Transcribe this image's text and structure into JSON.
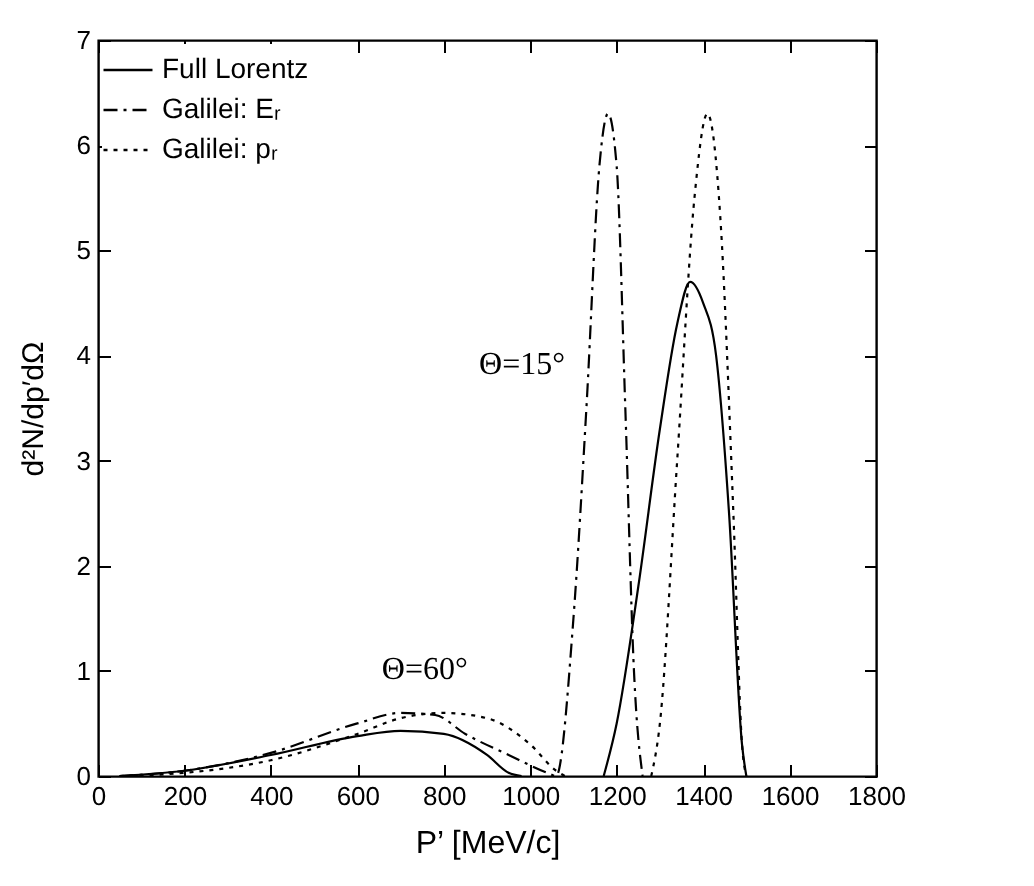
{
  "chart_data": {
    "type": "line",
    "xlabel": "P’ [MeV/c]",
    "ylabel": "d²N/dp′dΩ",
    "xlim": [
      0,
      1800
    ],
    "xticks": [
      0,
      200,
      400,
      600,
      800,
      1000,
      1200,
      1400,
      1600,
      1800
    ],
    "ylim": [
      0,
      7
    ],
    "yticks": [
      0,
      1,
      2,
      3,
      4,
      5,
      6,
      7
    ],
    "grid": false,
    "legend": "top left",
    "annotations": [
      "Θ=15°",
      "Θ=60°"
    ],
    "series": [
      {
        "name": "Full Lorentz",
        "color": "#000000",
        "line_style": "solid",
        "x": [
          50,
          200,
          400,
          600,
          700,
          800,
          900,
          950,
          980,
          null,
          1170,
          1200,
          1250,
          1300,
          1340,
          1370,
          1400,
          1430,
          1460,
          1490,
          1500
        ],
        "values": [
          0,
          0.05,
          0.2,
          0.38,
          0.43,
          0.4,
          0.2,
          0.03,
          0,
          null,
          0,
          0.5,
          1.8,
          3.3,
          4.3,
          4.7,
          4.5,
          4.0,
          2.5,
          0.3,
          0
        ]
      },
      {
        "name": "Galilei: Eᵣ",
        "color": "#000000",
        "line_style": "dashdot",
        "x": [
          50,
          200,
          400,
          600,
          700,
          780,
          850,
          950,
          1040,
          1060,
          1100,
          1130,
          1160,
          1180,
          1200,
          1220,
          1240,
          1260
        ],
        "values": [
          0,
          0.05,
          0.22,
          0.5,
          0.6,
          0.58,
          0.4,
          0.2,
          0.03,
          0,
          1.5,
          3.5,
          5.8,
          6.3,
          5.8,
          3.5,
          1.0,
          0
        ]
      },
      {
        "name": "Galilei: pᵣ",
        "color": "#000000",
        "line_style": "dotted",
        "x": [
          50,
          200,
          400,
          600,
          700,
          800,
          900,
          1000,
          1060,
          1080,
          null,
          1280,
          1300,
          1340,
          1380,
          1410,
          1440,
          1470,
          1490,
          1500
        ],
        "values": [
          0,
          0.03,
          0.15,
          0.4,
          0.55,
          0.6,
          0.55,
          0.3,
          0.05,
          0,
          null,
          0,
          0.5,
          3.0,
          5.5,
          6.3,
          5.3,
          2.5,
          0.3,
          0
        ]
      }
    ]
  }
}
